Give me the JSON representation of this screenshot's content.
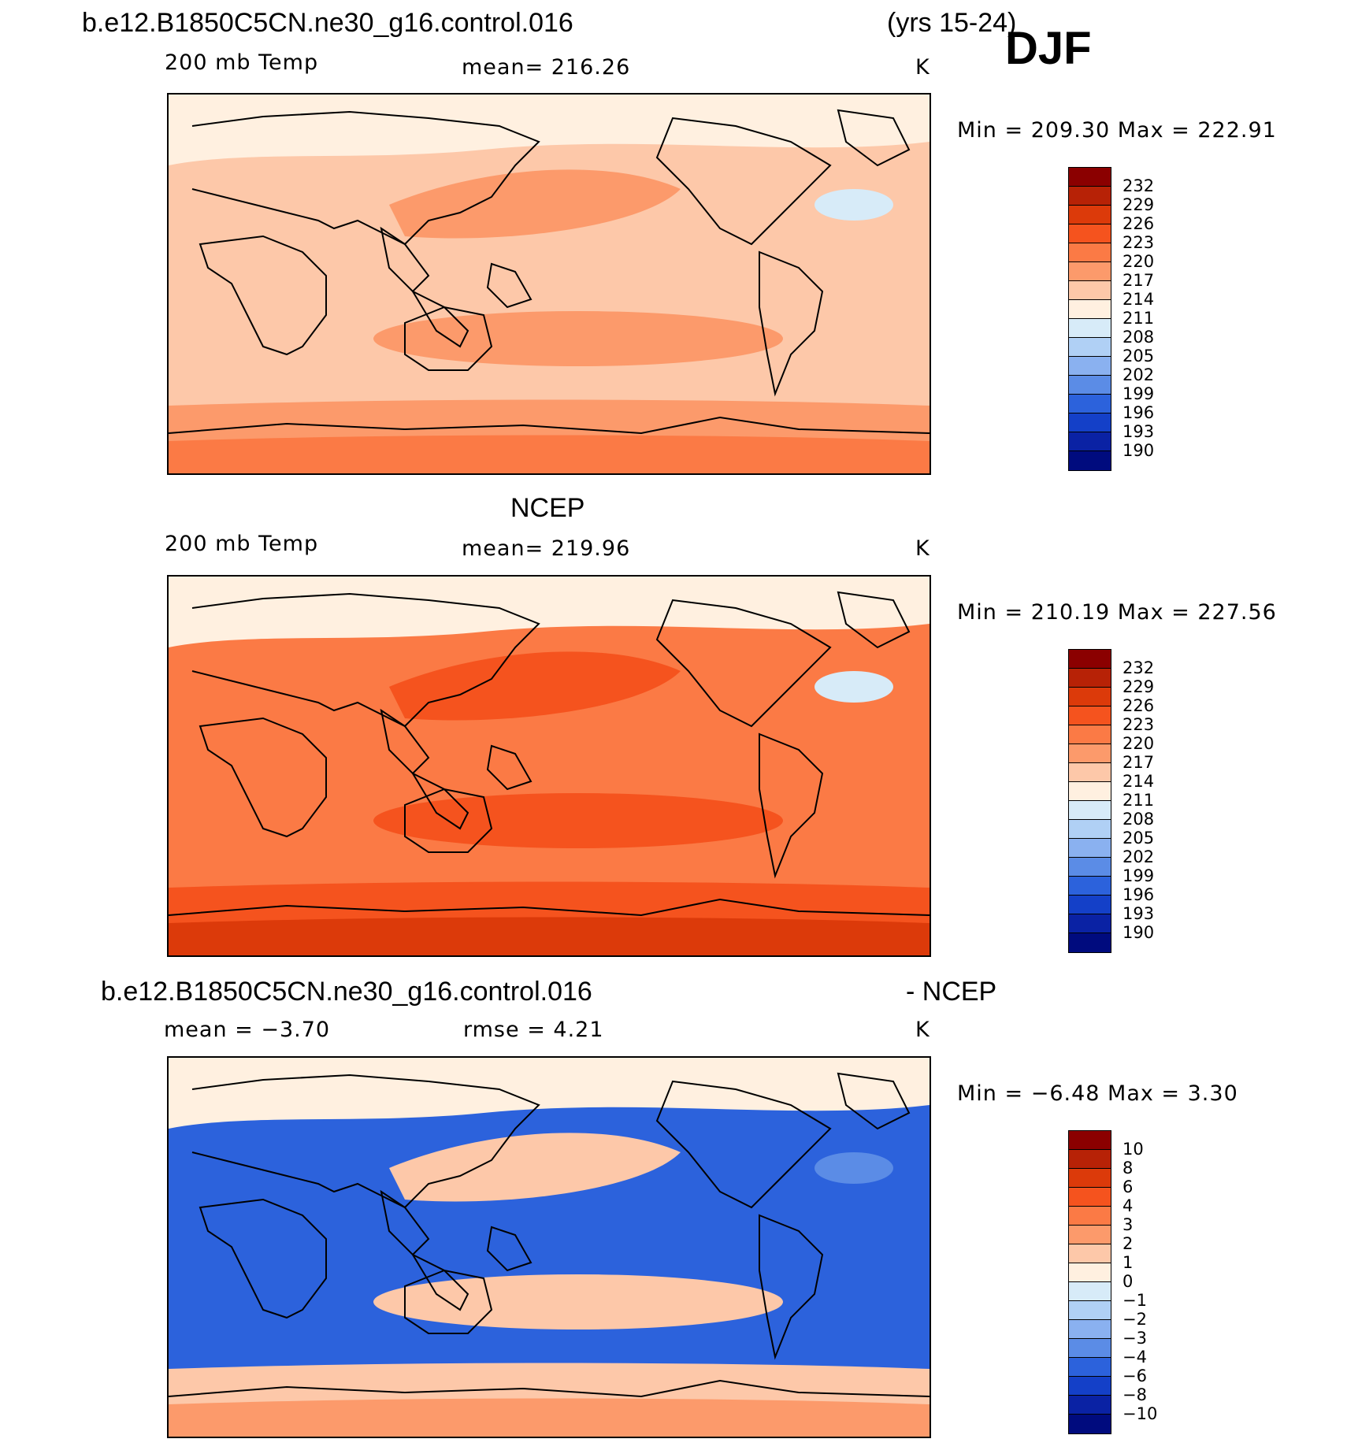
{
  "title": {
    "case": "b.e12.B1850C5CN.ne30_g16.control.016",
    "years": "(yrs 15-24)",
    "season": "DJF"
  },
  "panels": [
    {
      "id": "model",
      "heading": "",
      "left": "200 mb Temp",
      "center": "mean=  216.26",
      "right": "K",
      "minmax": "Min  =  209.30  Max  =  222.91",
      "colorbar": {
        "labels": [
          "232",
          "229",
          "226",
          "223",
          "220",
          "217",
          "214",
          "211",
          "208",
          "205",
          "202",
          "199",
          "196",
          "193",
          "190"
        ],
        "colors": [
          "#8b0000",
          "#b72206",
          "#dc3a0a",
          "#f5531e",
          "#fb7a45",
          "#fc9a6b",
          "#fdc8a9",
          "#fff0e0",
          "#d7ebf8",
          "#b0d0f5",
          "#8ab1f0",
          "#5b8ce6",
          "#2c62dc",
          "#1440c8",
          "#0a22a4",
          "#000b7e"
        ],
        "fills": {
          "base": "#fdc8a9",
          "warm": "#fc9a6b",
          "cream": "#fff0e0",
          "blue": "#d7ebf8",
          "hot": "#fb7a45"
        }
      }
    },
    {
      "id": "obs",
      "heading": "NCEP",
      "left": "200 mb Temp",
      "center": "mean=  219.96",
      "right": "K",
      "minmax": "Min  =  210.19  Max  =  227.56",
      "colorbar": {
        "labels": [
          "232",
          "229",
          "226",
          "223",
          "220",
          "217",
          "214",
          "211",
          "208",
          "205",
          "202",
          "199",
          "196",
          "193",
          "190"
        ],
        "colors": [
          "#8b0000",
          "#b72206",
          "#dc3a0a",
          "#f5531e",
          "#fb7a45",
          "#fc9a6b",
          "#fdc8a9",
          "#fff0e0",
          "#d7ebf8",
          "#b0d0f5",
          "#8ab1f0",
          "#5b8ce6",
          "#2c62dc",
          "#1440c8",
          "#0a22a4",
          "#000b7e"
        ],
        "fills": {
          "base": "#fb7a45",
          "warm": "#f5531e",
          "cream": "#fff0e0",
          "blue": "#d7ebf8",
          "hot": "#dc3a0a"
        }
      }
    },
    {
      "id": "diff",
      "heading_left": "b.e12.B1850C5CN.ne30_g16.control.016",
      "heading_right": "- NCEP",
      "left": "mean =   −3.70",
      "center": "rmse =    4.21",
      "right": "K",
      "minmax": "Min  =   −6.48  Max  =     3.30",
      "colorbar": {
        "labels": [
          "10",
          "8",
          "6",
          "4",
          "3",
          "2",
          "1",
          "0",
          "−1",
          "−2",
          "−3",
          "−4",
          "−6",
          "−8",
          "−10"
        ],
        "colors": [
          "#8b0000",
          "#b72206",
          "#dc3a0a",
          "#f5531e",
          "#fb7a45",
          "#fc9a6b",
          "#fdc8a9",
          "#fff0e0",
          "#d7ebf8",
          "#b0d0f5",
          "#8ab1f0",
          "#5b8ce6",
          "#2c62dc",
          "#1440c8",
          "#0a22a4",
          "#000b7e"
        ],
        "fills": {
          "base": "#2c62dc",
          "warm": "#fdc8a9",
          "cream": "#fff0e0",
          "blue": "#5b8ce6",
          "hot": "#fc9a6b"
        }
      }
    }
  ]
}
